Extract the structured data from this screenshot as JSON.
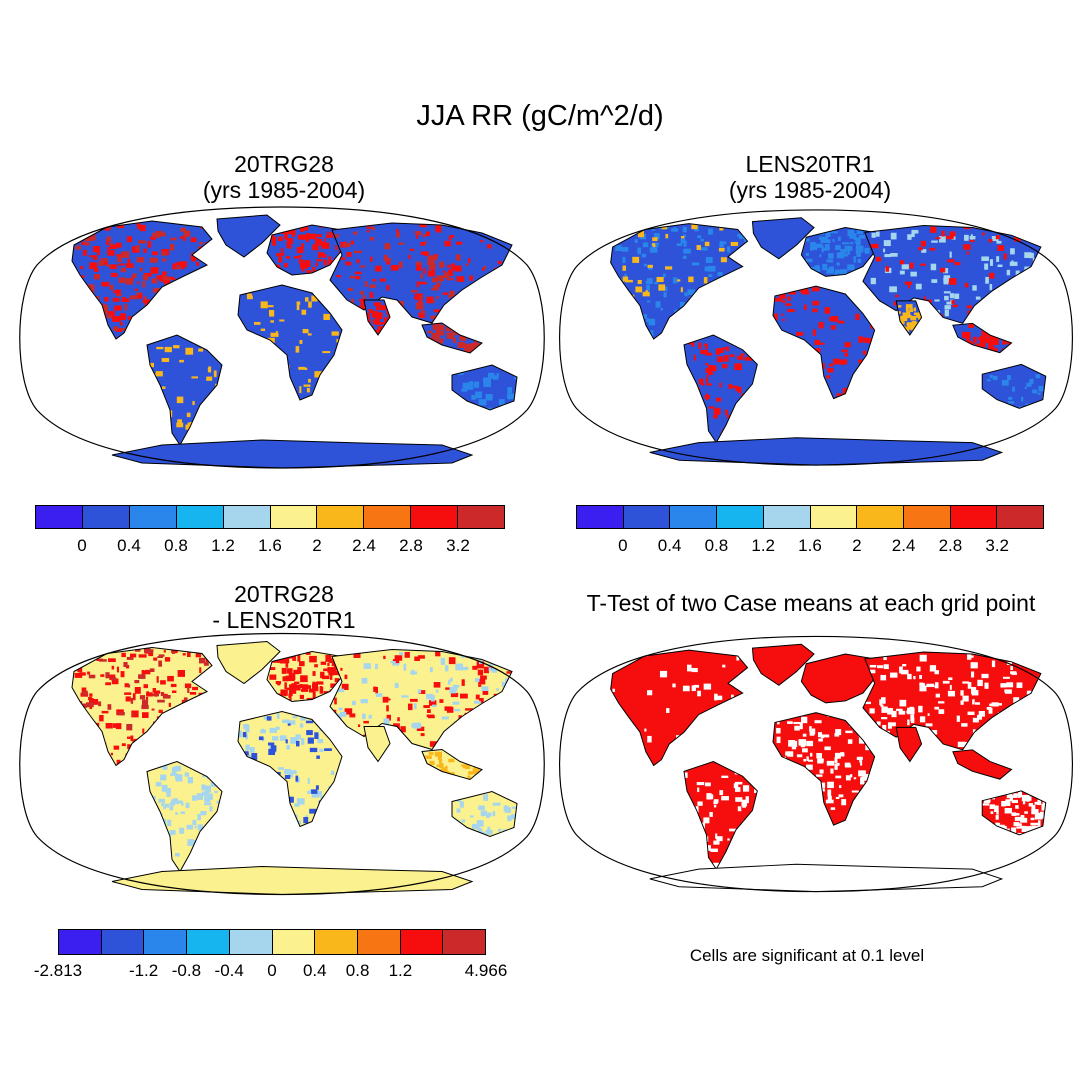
{
  "title": "JJA RR (gC/m^2/d)",
  "panels": {
    "top_left": {
      "title_line1": "20TRG28",
      "title_line2": "(yrs 1985-2004)"
    },
    "top_right": {
      "title_line1": "LENS20TR1",
      "title_line2": "(yrs 1985-2004)"
    },
    "bottom_left": {
      "title_line1": "20TRG28",
      "title_line2": "- LENS20TR1"
    },
    "bottom_right": {
      "title_line1": "T-Test of two Case means at each grid point",
      "note": "Cells are significant at 0.1 level"
    }
  },
  "colorbar_abs": {
    "colors": [
      "#3b1ff0",
      "#2e53d9",
      "#2a86ea",
      "#16b5ef",
      "#a6d5ee",
      "#fbf18e",
      "#f9b71c",
      "#f77512",
      "#f60d0d",
      "#cc2a2a"
    ],
    "labels": [
      "0",
      "0.4",
      "0.8",
      "1.2",
      "1.6",
      "2",
      "2.4",
      "2.8",
      "3.2"
    ]
  },
  "colorbar_diff": {
    "colors": [
      "#3b1ff0",
      "#2e53d9",
      "#2a86ea",
      "#16b5ef",
      "#a6d5ee",
      "#fbf18e",
      "#f9b71c",
      "#f77512",
      "#f60d0d",
      "#cc2a2a"
    ],
    "labels": [
      "-2.813",
      "-1.2",
      "-0.8",
      "-0.4",
      "0",
      "0.4",
      "0.8",
      "1.2",
      "4.966"
    ]
  },
  "map_colors": {
    "ocean": "#ffffff",
    "land_low": "#2e53d9",
    "land_mid": "#2a86ea",
    "land_light": "#a6d5ee",
    "land_high": "#f9b71c",
    "land_hot": "#f60d0d",
    "land_max": "#cc2a2a",
    "diff_base": "#fbf18e",
    "signif": "#f60d0d"
  }
}
